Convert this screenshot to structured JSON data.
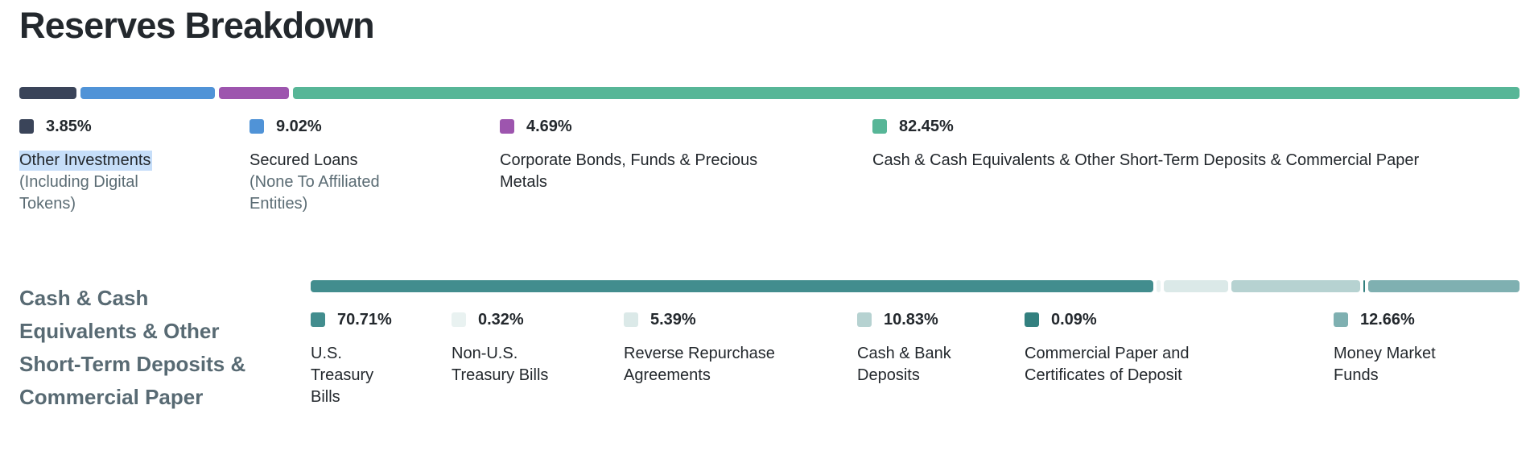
{
  "title": "Reserves Breakdown",
  "colors": {
    "text_dark": "#23282d",
    "text_gray": "#5b6c74",
    "heading_slate": "#586a73",
    "selection_highlight": "#c6def9",
    "background": "#ffffff"
  },
  "chart_data": [
    {
      "type": "bar",
      "variant": "stacked-horizontal",
      "title": "Reserves Breakdown",
      "unit": "%",
      "segments": [
        {
          "label": "Other Investments (Including Digital Tokens)",
          "value": 3.85,
          "color": "#3a4459"
        },
        {
          "label": "Secured Loans (None To Affiliated Entities)",
          "value": 9.02,
          "color": "#5093d7"
        },
        {
          "label": "Corporate Bonds, Funds & Precious Metals",
          "value": 4.69,
          "color": "#9d55ae"
        },
        {
          "label": "Cash & Cash Equivalents & Other Short-Term Deposits & Commercial Paper",
          "value": 82.45,
          "color": "#57b697"
        }
      ]
    },
    {
      "type": "bar",
      "variant": "stacked-horizontal",
      "title": "Cash & Cash Equivalents & Other Short-Term Deposits & Commercial Paper",
      "unit": "%",
      "segments": [
        {
          "label": "U.S. Treasury Bills",
          "value": 70.71,
          "color": "#428d8e"
        },
        {
          "label": "Non-U.S. Treasury Bills",
          "value": 0.32,
          "color": "#e9f2f1"
        },
        {
          "label": "Reverse Repurchase Agreements",
          "value": 5.39,
          "color": "#dbe9e8"
        },
        {
          "label": "Cash & Bank Deposits",
          "value": 10.83,
          "color": "#b6d2d1"
        },
        {
          "label": "Commercial Paper and Certificates of Deposit",
          "value": 0.09,
          "color": "#33807f"
        },
        {
          "label": "Money Market Funds",
          "value": 12.66,
          "color": "#7fb0b1"
        }
      ]
    }
  ],
  "section1": {
    "legend": [
      {
        "pct": "3.85%",
        "label": "Other Investments",
        "sublabel": "(Including Digital Tokens)",
        "highlighted": true
      },
      {
        "pct": "9.02%",
        "label": "Secured Loans",
        "sublabel": "(None To Affiliated Entities)"
      },
      {
        "pct": "4.69%",
        "label": "Corporate Bonds, Funds & Precious Metals"
      },
      {
        "pct": "82.45%",
        "label": "Cash & Cash Equivalents & Other Short-Term Deposits & Commercial Paper"
      }
    ]
  },
  "section2": {
    "heading": "Cash & Cash Equivalents & Other Short-Term Deposits & Commercial Paper",
    "legend": [
      {
        "pct": "70.71%",
        "label": "U.S. Treasury Bills"
      },
      {
        "pct": "0.32%",
        "label": "Non-U.S. Treasury Bills"
      },
      {
        "pct": "5.39%",
        "label": "Reverse Repurchase Agreements"
      },
      {
        "pct": "10.83%",
        "label": "Cash & Bank Deposits"
      },
      {
        "pct": "0.09%",
        "label": "Commercial Paper and Certificates of Deposit"
      },
      {
        "pct": "12.66%",
        "label": "Money Market Funds"
      }
    ]
  }
}
